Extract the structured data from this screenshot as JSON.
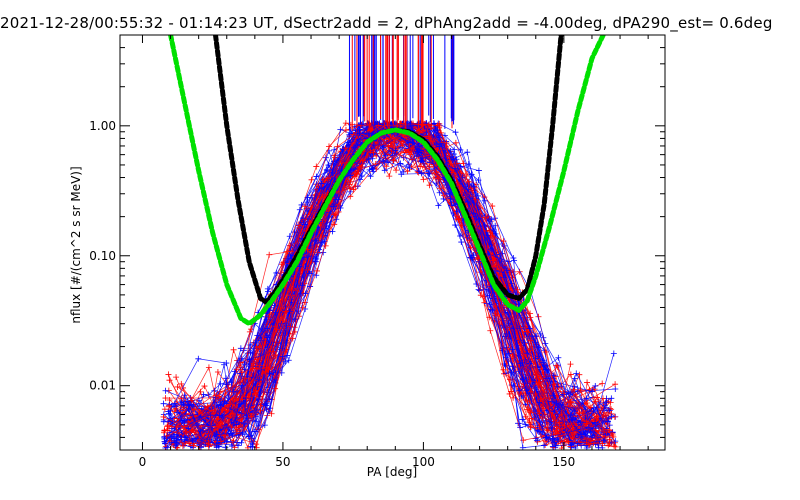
{
  "title": "2021-12-28/00:55:32 - 01:14:23 UT, dSectr2add = 2, dPhAng2add = -4.00deg, dPA290_est=   0.6deg",
  "chart_data": {
    "type": "line",
    "title": "2021-12-28/00:55:32 - 01:14:23 UT, dSectr2add = 2, dPhAng2add = -4.00deg, dPA290_est=   0.6deg",
    "xlabel": "PA [deg]",
    "ylabel": "nflux [#/(cm^2 s sr MeV)]",
    "xlim": [
      -8,
      186
    ],
    "ylim": [
      0.0032,
      5.0
    ],
    "yscale": "log",
    "x_ticks": [
      "0",
      "50",
      "100",
      "150"
    ],
    "x_tick_values": [
      0,
      50,
      100,
      150
    ],
    "y_ticks": [
      "0.01",
      "0.10",
      "1.00"
    ],
    "y_tick_values": [
      0.01,
      0.1,
      1.0
    ],
    "grid": false,
    "colors": {
      "red": "#ff0000",
      "blue": "#0000ff",
      "black": "#000000",
      "green": "#00e000"
    },
    "series": [
      {
        "color": "black",
        "style": "dashed-thick",
        "x": [
          26,
          30,
          34,
          38,
          42,
          44,
          47,
          50,
          55,
          60,
          65,
          70,
          75,
          80,
          85,
          90,
          95,
          100,
          105,
          110,
          115,
          120,
          125,
          130,
          134,
          137,
          140,
          143,
          146,
          149
        ],
        "y": [
          5.0,
          1.0,
          0.27,
          0.09,
          0.047,
          0.044,
          0.052,
          0.065,
          0.1,
          0.16,
          0.25,
          0.38,
          0.55,
          0.75,
          0.88,
          0.93,
          0.9,
          0.78,
          0.58,
          0.38,
          0.22,
          0.12,
          0.068,
          0.05,
          0.047,
          0.055,
          0.1,
          0.25,
          1.0,
          5.0
        ]
      },
      {
        "color": "green",
        "style": "dashed-thick",
        "x": [
          10,
          15,
          20,
          25,
          30,
          35,
          38,
          42,
          46,
          50,
          55,
          60,
          65,
          70,
          75,
          80,
          85,
          90,
          95,
          100,
          105,
          110,
          115,
          120,
          125,
          130,
          134,
          137,
          140,
          145,
          150,
          155,
          160,
          164
        ],
        "y": [
          5.0,
          1.5,
          0.45,
          0.15,
          0.06,
          0.033,
          0.03,
          0.035,
          0.045,
          0.06,
          0.09,
          0.15,
          0.24,
          0.38,
          0.55,
          0.75,
          0.88,
          0.93,
          0.88,
          0.75,
          0.55,
          0.36,
          0.2,
          0.11,
          0.06,
          0.042,
          0.038,
          0.045,
          0.07,
          0.17,
          0.45,
          1.3,
          3.3,
          5.0
        ]
      }
    ],
    "observations": {
      "red": "many red measurement traces with + markers spanning PA 10-170 deg, peaking near 1.0 at 90 deg",
      "blue": "many blue measurement traces with + markers spanning PA 10-170 deg, peaking near 1.0 at 90 deg"
    }
  }
}
